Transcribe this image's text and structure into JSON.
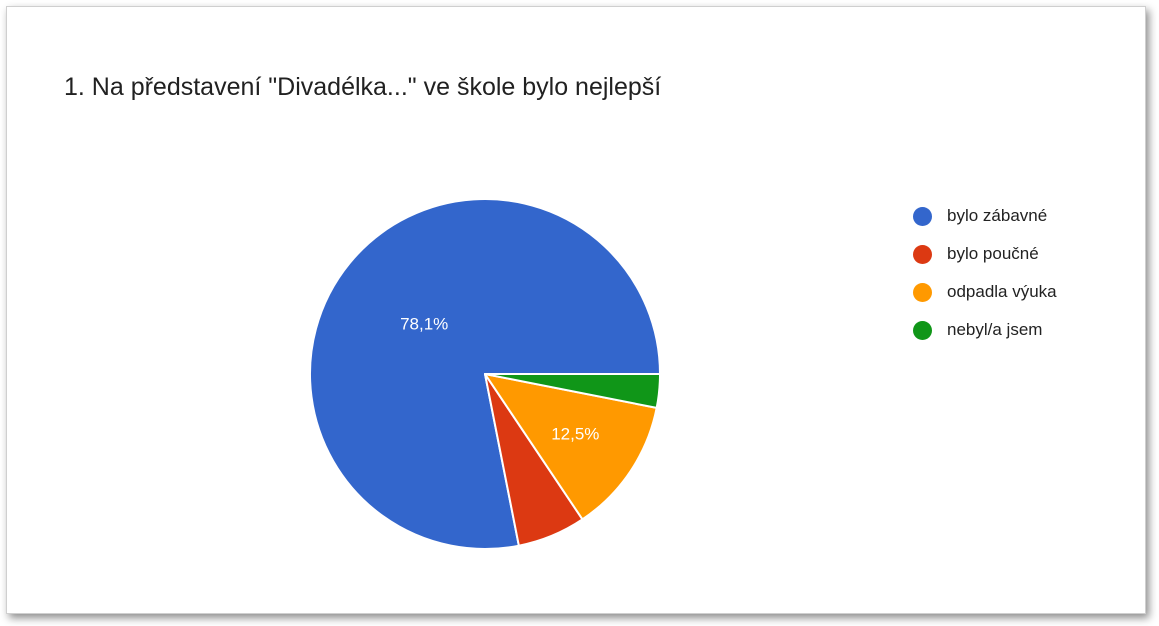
{
  "chart_data": {
    "type": "pie",
    "title": "1. Na představení \"Divadélka...\" ve škole bylo nejlepší",
    "legend_position": "right",
    "slices": [
      {
        "label": "bylo zábavné",
        "value": 78.1,
        "color": "#3366cc",
        "data_label": "78,1%"
      },
      {
        "label": "bylo poučné",
        "value": 6.3,
        "color": "#dc3912",
        "data_label": ""
      },
      {
        "label": "odpadla výuka",
        "value": 12.5,
        "color": "#ff9900",
        "data_label": "12,5%"
      },
      {
        "label": "nebyl/a jsem",
        "value": 3.1,
        "color": "#109618",
        "data_label": ""
      }
    ]
  }
}
